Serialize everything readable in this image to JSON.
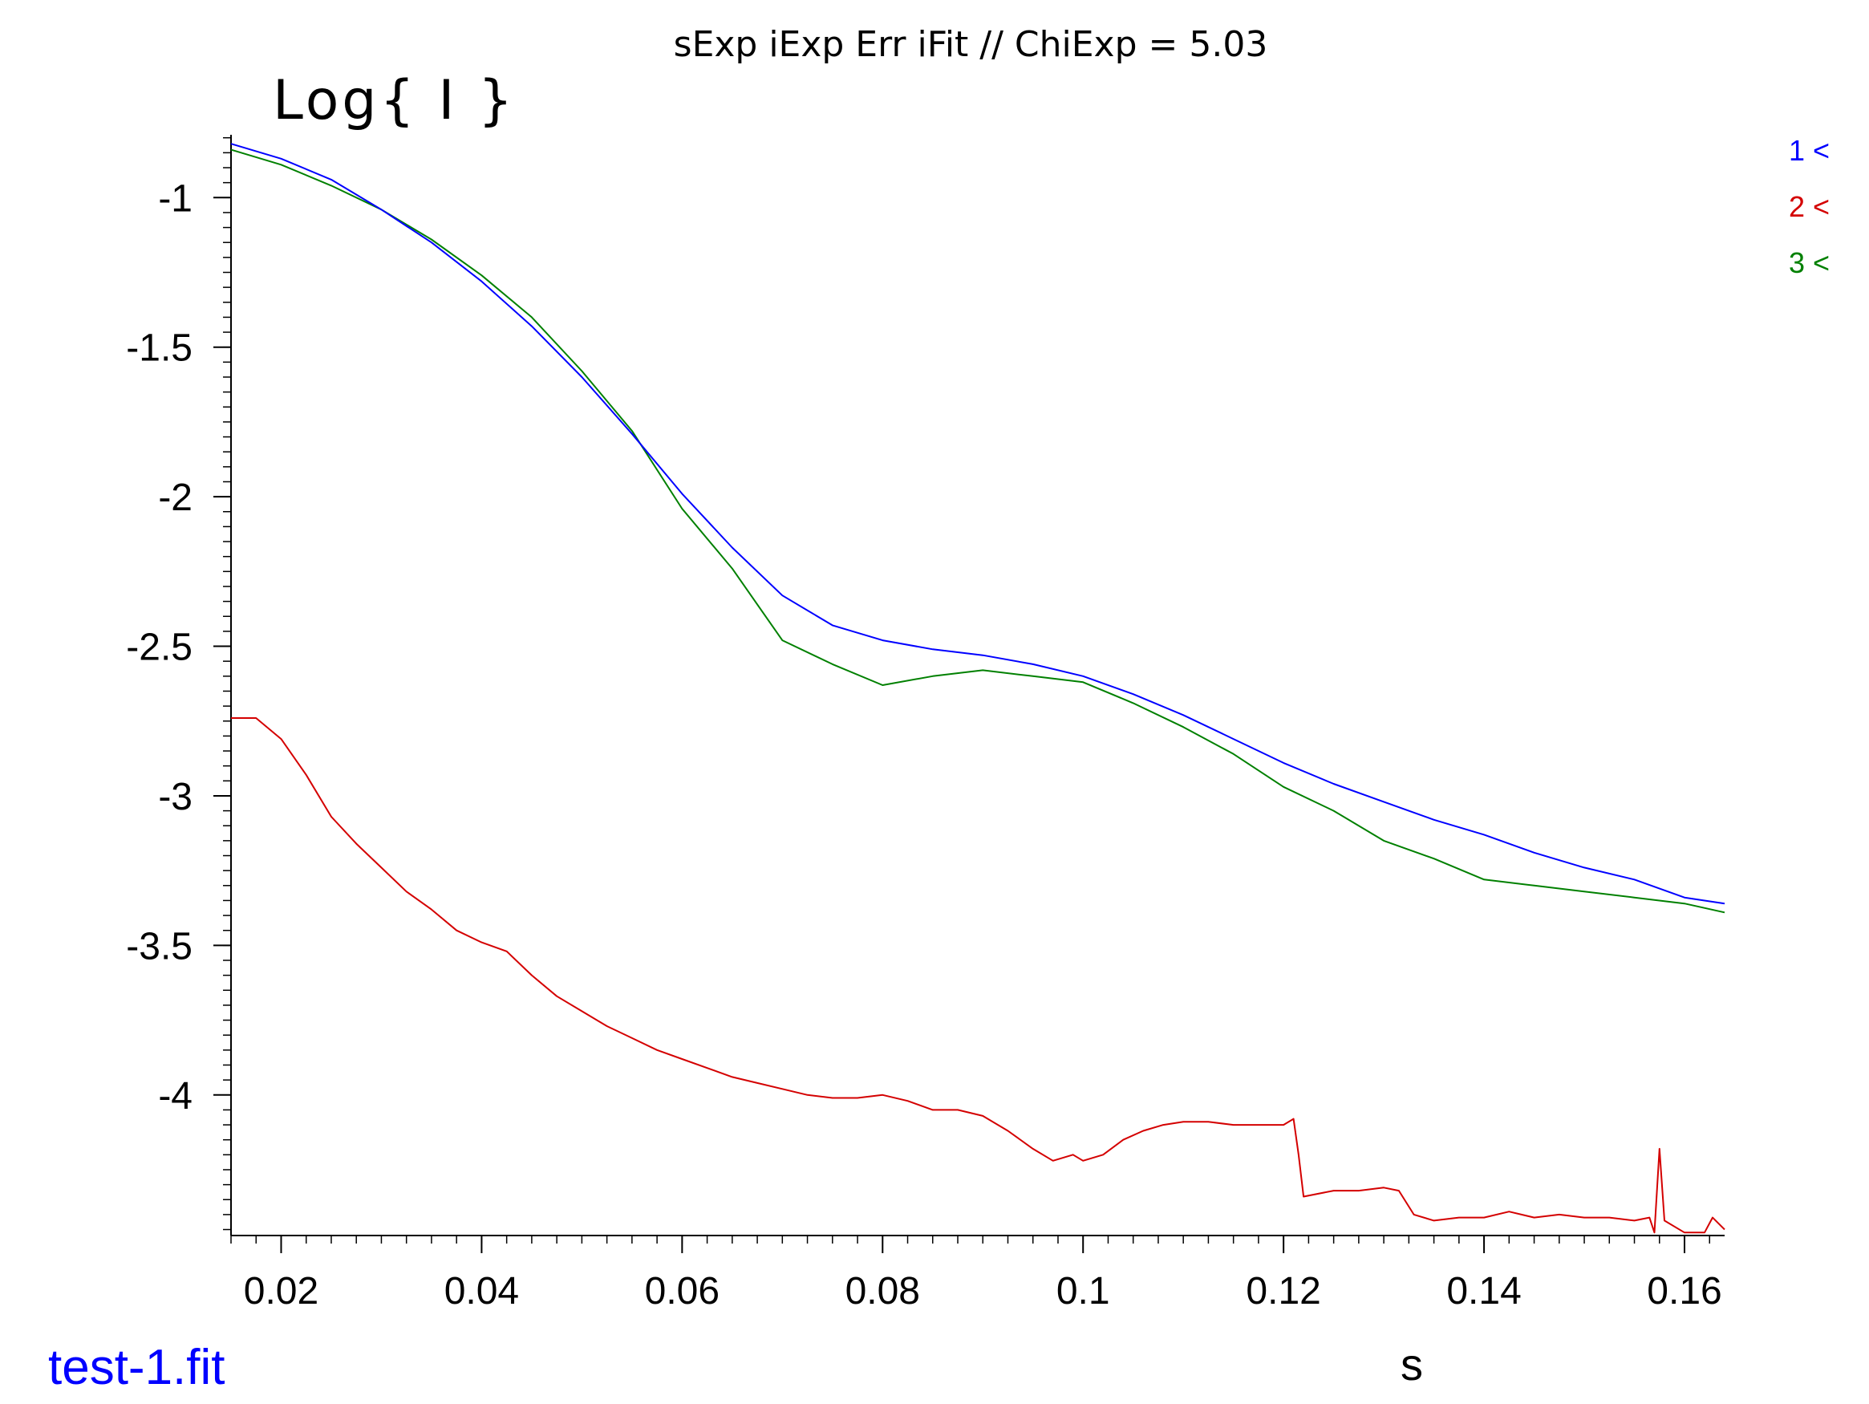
{
  "chart_data": {
    "type": "line",
    "title": "sExp iExp Err iFit // ChiExp = 5.03",
    "ylabel": "Log{ I }",
    "xlabel": "s",
    "xlim": [
      0.015,
      0.164
    ],
    "ylim": [
      -4.47,
      -0.79
    ],
    "xticks": [
      0.02,
      0.04,
      0.06,
      0.08,
      0.1,
      0.12,
      0.14,
      0.16
    ],
    "xtick_labels": [
      "0.02",
      "0.04",
      "0.06",
      "0.08",
      "0.1",
      "0.12",
      "0.14",
      "0.16"
    ],
    "yticks": [
      -1,
      -1.5,
      -2,
      -2.5,
      -3,
      -3.5,
      -4
    ],
    "ytick_labels": [
      "-1",
      "-1.5",
      "-2",
      "-2.5",
      "-3",
      "-3.5",
      "-4"
    ],
    "grid": false,
    "legend_position": "top-right",
    "series": [
      {
        "name": "1 <",
        "color": "#0000ff",
        "x": [
          0.015,
          0.02,
          0.025,
          0.03,
          0.035,
          0.04,
          0.045,
          0.05,
          0.055,
          0.06,
          0.065,
          0.07,
          0.075,
          0.08,
          0.085,
          0.09,
          0.095,
          0.1,
          0.105,
          0.11,
          0.115,
          0.12,
          0.125,
          0.13,
          0.135,
          0.14,
          0.145,
          0.15,
          0.155,
          0.16,
          0.164
        ],
        "y": [
          -0.82,
          -0.87,
          -0.94,
          -1.04,
          -1.15,
          -1.28,
          -1.43,
          -1.6,
          -1.79,
          -1.99,
          -2.17,
          -2.33,
          -2.43,
          -2.48,
          -2.51,
          -2.53,
          -2.56,
          -2.6,
          -2.66,
          -2.73,
          -2.81,
          -2.89,
          -2.96,
          -3.02,
          -3.08,
          -3.13,
          -3.19,
          -3.24,
          -3.28,
          -3.34,
          -3.36
        ]
      },
      {
        "name": "2 <",
        "color": "#d40000",
        "x": [
          0.015,
          0.0175,
          0.02,
          0.0225,
          0.025,
          0.0275,
          0.03,
          0.0325,
          0.035,
          0.0375,
          0.04,
          0.0425,
          0.045,
          0.0475,
          0.05,
          0.0525,
          0.055,
          0.0575,
          0.06,
          0.0625,
          0.065,
          0.0675,
          0.07,
          0.0725,
          0.075,
          0.0775,
          0.08,
          0.0825,
          0.085,
          0.0875,
          0.09,
          0.0925,
          0.095,
          0.097,
          0.099,
          0.1,
          0.102,
          0.104,
          0.106,
          0.108,
          0.11,
          0.1125,
          0.115,
          0.1175,
          0.12,
          0.121,
          0.1215,
          0.122,
          0.125,
          0.1275,
          0.13,
          0.1315,
          0.133,
          0.135,
          0.1375,
          0.14,
          0.1425,
          0.145,
          0.1475,
          0.15,
          0.1525,
          0.155,
          0.1565,
          0.157,
          0.1575,
          0.158,
          0.16,
          0.162,
          0.1628,
          0.164
        ],
        "y": [
          -2.74,
          -2.74,
          -2.81,
          -2.93,
          -3.07,
          -3.16,
          -3.24,
          -3.32,
          -3.38,
          -3.45,
          -3.49,
          -3.52,
          -3.6,
          -3.67,
          -3.72,
          -3.77,
          -3.81,
          -3.85,
          -3.88,
          -3.91,
          -3.94,
          -3.96,
          -3.98,
          -4.0,
          -4.01,
          -4.01,
          -4.0,
          -4.02,
          -4.05,
          -4.05,
          -4.07,
          -4.12,
          -4.18,
          -4.22,
          -4.2,
          -4.22,
          -4.2,
          -4.15,
          -4.12,
          -4.1,
          -4.09,
          -4.09,
          -4.1,
          -4.1,
          -4.1,
          -4.08,
          -4.2,
          -4.34,
          -4.32,
          -4.32,
          -4.31,
          -4.32,
          -4.4,
          -4.42,
          -4.41,
          -4.41,
          -4.39,
          -4.41,
          -4.4,
          -4.41,
          -4.41,
          -4.42,
          -4.41,
          -4.46,
          -4.18,
          -4.42,
          -4.46,
          -4.46,
          -4.41,
          -4.45
        ]
      },
      {
        "name": "3 <",
        "color": "#008000",
        "x": [
          0.015,
          0.02,
          0.025,
          0.03,
          0.035,
          0.04,
          0.045,
          0.05,
          0.055,
          0.06,
          0.065,
          0.07,
          0.075,
          0.08,
          0.085,
          0.09,
          0.095,
          0.1,
          0.105,
          0.11,
          0.115,
          0.12,
          0.125,
          0.13,
          0.135,
          0.14,
          0.145,
          0.15,
          0.155,
          0.16,
          0.164
        ],
        "y": [
          -0.84,
          -0.89,
          -0.96,
          -1.04,
          -1.14,
          -1.26,
          -1.4,
          -1.58,
          -1.78,
          -2.04,
          -2.24,
          -2.48,
          -2.56,
          -2.63,
          -2.6,
          -2.58,
          -2.6,
          -2.62,
          -2.69,
          -2.77,
          -2.86,
          -2.97,
          -3.05,
          -3.15,
          -3.21,
          -3.28,
          -3.3,
          -3.32,
          -3.34,
          -3.36,
          -3.39
        ]
      }
    ]
  },
  "footer": {
    "filename": "test-1.fit",
    "filename_color": "#0000ff"
  }
}
